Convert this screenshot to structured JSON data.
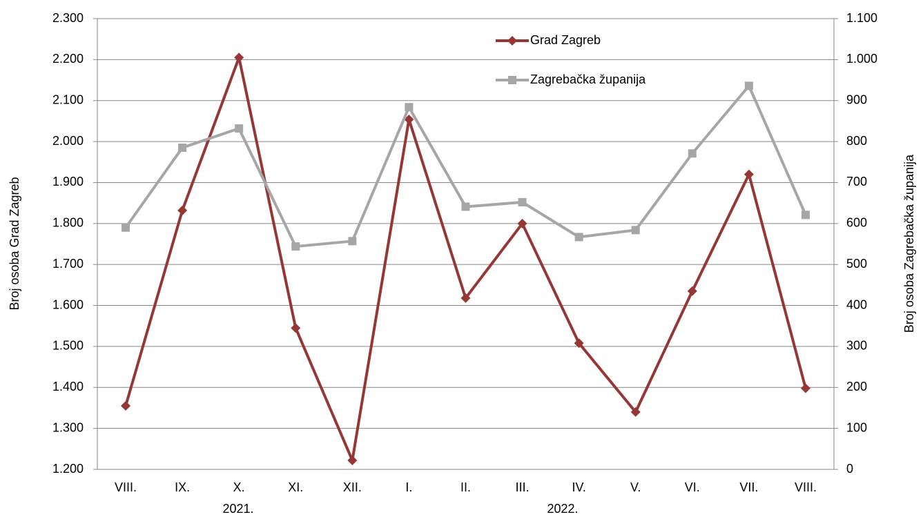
{
  "chart_data": {
    "type": "line",
    "categories": [
      "VIII.",
      "IX.",
      "X.",
      "XI.",
      "XII.",
      "I.",
      "II.",
      "III.",
      "IV.",
      "V.",
      "VI.",
      "VII.",
      "VIII."
    ],
    "year_labels": [
      "2021.",
      "2022."
    ],
    "ylabel": "Broj osoba Grad Zagreb",
    "y2label": "Broj osoba Zagrebačka županija",
    "ylim": [
      1200,
      2300
    ],
    "yticks": [
      {
        "value": 1200,
        "label": "1.200"
      },
      {
        "value": 1300,
        "label": "1.300"
      },
      {
        "value": 1400,
        "label": "1.400"
      },
      {
        "value": 1500,
        "label": "1.500"
      },
      {
        "value": 1600,
        "label": "1.600"
      },
      {
        "value": 1700,
        "label": "1.700"
      },
      {
        "value": 1800,
        "label": "1.800"
      },
      {
        "value": 1900,
        "label": "1.900"
      },
      {
        "value": 2000,
        "label": "2.000"
      },
      {
        "value": 2100,
        "label": "2.100"
      },
      {
        "value": 2200,
        "label": "2.200"
      },
      {
        "value": 2300,
        "label": "2.300"
      }
    ],
    "y2lim": [
      0,
      1100
    ],
    "y2ticks": [
      0,
      100,
      200,
      300,
      400,
      500,
      600,
      700,
      800,
      900,
      {
        "value": 1000,
        "label": "1.000"
      },
      {
        "value": 1100,
        "label": "1.100"
      }
    ],
    "grid": true,
    "series": [
      {
        "name": "Grad Zagreb",
        "color": "#953735",
        "marker": "diamond",
        "values": [
          1355,
          1832,
          2205,
          1545,
          1222,
          2054,
          1618,
          1800,
          1508,
          1340,
          1635,
          1920,
          1398
        ]
      },
      {
        "name": "Zagrebačka županija",
        "color": "#a6a6a6",
        "marker": "square",
        "axis": "y2",
        "values": [
          590,
          785,
          832,
          544,
          557,
          884,
          641,
          652,
          567,
          584,
          771,
          936,
          621
        ]
      }
    ]
  }
}
